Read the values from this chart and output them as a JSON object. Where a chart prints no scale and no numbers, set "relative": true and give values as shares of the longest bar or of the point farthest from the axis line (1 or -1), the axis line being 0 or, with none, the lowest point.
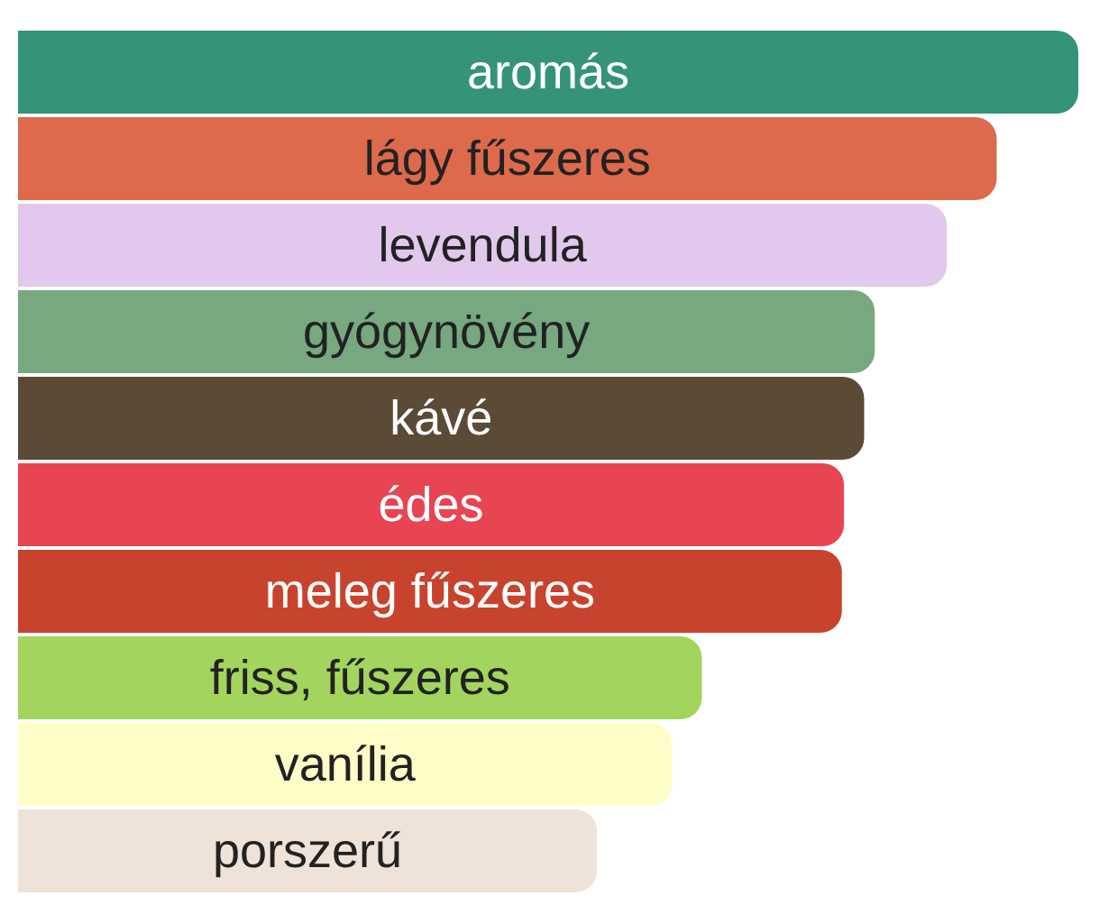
{
  "chart_data": {
    "type": "bar",
    "orientation": "horizontal",
    "relative": true,
    "categories": [
      "aromás",
      "lágy fűszeres",
      "levendula",
      "gyógynövény",
      "kávé",
      "édes",
      "meleg fűszeres",
      "friss, fűszeres",
      "vanília",
      "porszerű"
    ],
    "values": [
      1,
      0.923,
      0.876,
      0.808,
      0.798,
      0.779,
      0.777,
      0.645,
      0.617,
      0.546
    ],
    "colors": [
      "#35937a",
      "#dc6a4b",
      "#e2c8ec",
      "#77a880",
      "#5b4a36",
      "#e84552",
      "#c8432e",
      "#a3d55e",
      "#fefdc7",
      "#efe2d8"
    ]
  }
}
